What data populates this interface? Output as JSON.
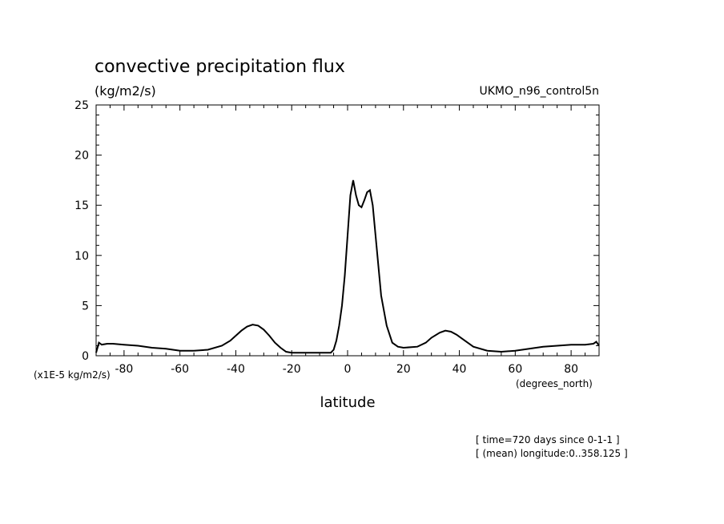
{
  "chart_data": {
    "type": "line",
    "title": "convective precipitation flux",
    "units_label": "(kg/m2/s)",
    "model_label": "UKMO_n96_control5n",
    "xlabel": "latitude",
    "x_units": "(degrees_north)",
    "y_scale_note": "(x1E-5 kg/m2/s)",
    "xlim": [
      -90,
      90
    ],
    "ylim": [
      0,
      25
    ],
    "x_ticks": [
      -80,
      -60,
      -40,
      -20,
      0,
      20,
      40,
      60,
      80
    ],
    "y_ticks": [
      0,
      5,
      10,
      15,
      20,
      25
    ],
    "grid": false,
    "series": [
      {
        "x": [
          -90,
          -89,
          -88,
          -86,
          -84,
          -80,
          -75,
          -70,
          -65,
          -60,
          -55,
          -50,
          -45,
          -42,
          -40,
          -38,
          -36,
          -34,
          -32,
          -30,
          -28,
          -26,
          -24,
          -22,
          -20,
          -15,
          -10,
          -6,
          -5,
          -4,
          -3,
          -2,
          -1,
          0,
          1,
          2,
          3,
          4,
          5,
          6,
          7,
          8,
          9,
          10,
          12,
          14,
          16,
          18,
          20,
          25,
          28,
          30,
          33,
          35,
          37,
          39,
          41,
          43,
          45,
          50,
          55,
          60,
          65,
          70,
          75,
          80,
          85,
          88,
          89,
          90
        ],
        "y": [
          0.3,
          1.3,
          1.1,
          1.2,
          1.2,
          1.1,
          1.0,
          0.8,
          0.7,
          0.5,
          0.5,
          0.6,
          1.0,
          1.5,
          2.0,
          2.5,
          2.9,
          3.1,
          3.0,
          2.6,
          2.0,
          1.3,
          0.8,
          0.4,
          0.3,
          0.3,
          0.3,
          0.3,
          0.6,
          1.5,
          3.0,
          5.0,
          8.0,
          12.0,
          16.0,
          17.5,
          16.0,
          15.0,
          14.8,
          15.5,
          16.3,
          16.5,
          15.0,
          12.0,
          6.0,
          3.0,
          1.3,
          0.9,
          0.8,
          0.9,
          1.3,
          1.8,
          2.3,
          2.5,
          2.4,
          2.1,
          1.7,
          1.3,
          0.9,
          0.5,
          0.4,
          0.5,
          0.7,
          0.9,
          1.0,
          1.1,
          1.1,
          1.2,
          1.4,
          1.0
        ]
      }
    ]
  },
  "annotations": {
    "line1": "[ time=720 days since 0-1-1 ]",
    "line2": "[ (mean) longitude:0..358.125 ]"
  }
}
